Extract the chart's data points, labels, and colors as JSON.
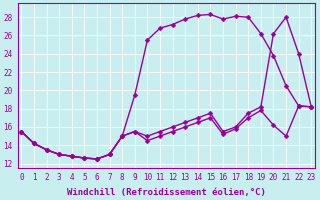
{
  "xlabel": "Windchill (Refroidissement éolien,°C)",
  "bg_color": "#c8eef0",
  "line_color": "#990099",
  "xlim_min": -0.3,
  "xlim_max": 23.3,
  "ylim_min": 11.5,
  "ylim_max": 29.5,
  "yticks": [
    12,
    14,
    16,
    18,
    20,
    22,
    24,
    26,
    28
  ],
  "xticks": [
    0,
    1,
    2,
    3,
    4,
    5,
    6,
    7,
    8,
    9,
    10,
    11,
    12,
    13,
    14,
    15,
    16,
    17,
    18,
    19,
    20,
    21,
    22,
    23
  ],
  "line1_x": [
    0,
    1,
    2,
    3,
    4,
    5,
    6,
    7,
    8,
    9,
    10,
    11,
    12,
    13,
    14,
    15,
    16,
    17,
    18,
    19,
    20,
    21,
    22,
    23
  ],
  "line1_y": [
    15.5,
    14.2,
    13.5,
    13.0,
    12.8,
    12.6,
    12.5,
    13.0,
    15.0,
    19.5,
    25.5,
    26.8,
    27.2,
    27.8,
    28.2,
    28.3,
    27.8,
    28.1,
    28.0,
    26.2,
    23.8,
    20.5,
    18.3,
    18.2
  ],
  "line2_x": [
    0,
    1,
    2,
    3,
    4,
    5,
    6,
    7,
    8,
    9,
    10,
    11,
    12,
    13,
    14,
    15,
    16,
    17,
    18,
    19,
    20,
    21,
    22,
    23
  ],
  "line2_y": [
    15.5,
    14.2,
    13.5,
    13.0,
    12.8,
    12.6,
    12.5,
    13.0,
    15.0,
    15.5,
    15.0,
    15.5,
    16.0,
    16.5,
    17.0,
    17.5,
    15.5,
    16.0,
    17.5,
    18.2,
    26.2,
    28.0,
    24.0,
    18.2
  ],
  "line3_x": [
    0,
    1,
    2,
    3,
    4,
    5,
    6,
    7,
    8,
    9,
    10,
    11,
    12,
    13,
    14,
    15,
    16,
    17,
    18,
    19,
    20,
    21,
    22,
    23
  ],
  "line3_y": [
    15.5,
    14.2,
    13.5,
    13.0,
    12.8,
    12.6,
    12.5,
    13.0,
    15.0,
    15.5,
    14.5,
    15.0,
    15.5,
    16.0,
    16.5,
    17.0,
    15.2,
    15.8,
    17.0,
    17.8,
    16.2,
    15.0,
    18.3,
    18.2
  ],
  "markersize": 2.5,
  "linewidth": 1.0,
  "font_family": "monospace",
  "xlabel_fontsize": 6.5,
  "tick_fontsize": 5.5
}
